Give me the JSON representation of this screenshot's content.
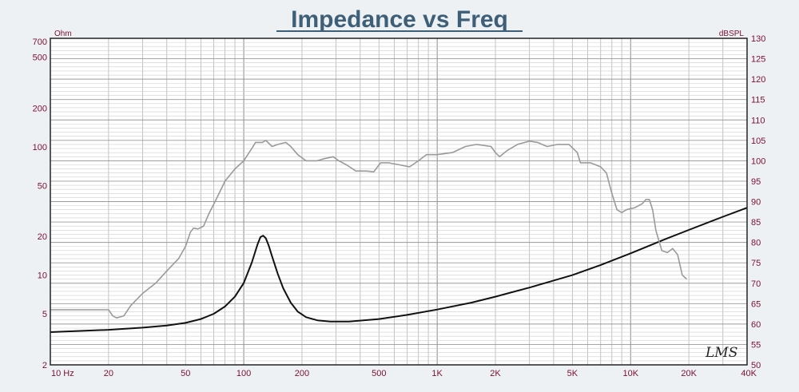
{
  "chart_data": {
    "type": "line",
    "title": "Impedance vs Freq",
    "x_scale": "log",
    "xlim": [
      10,
      40000
    ],
    "x_ticks": [
      {
        "value": 10,
        "label": "10  Hz"
      },
      {
        "value": 20,
        "label": "20"
      },
      {
        "value": 50,
        "label": "50"
      },
      {
        "value": 100,
        "label": "100"
      },
      {
        "value": 200,
        "label": "200"
      },
      {
        "value": 500,
        "label": "500"
      },
      {
        "value": 1000,
        "label": "1K"
      },
      {
        "value": 2000,
        "label": "2K"
      },
      {
        "value": 5000,
        "label": "5K"
      },
      {
        "value": 10000,
        "label": "10K"
      },
      {
        "value": 20000,
        "label": "20K"
      },
      {
        "value": 40000,
        "label": "40K"
      }
    ],
    "y_left": {
      "unit": "Ohm",
      "scale": "log",
      "range": [
        2,
        700
      ],
      "ticks": [
        {
          "value": 700,
          "label": "700"
        },
        {
          "value": 500,
          "label": "500"
        },
        {
          "value": 200,
          "label": "200"
        },
        {
          "value": 100,
          "label": "100"
        },
        {
          "value": 50,
          "label": "50"
        },
        {
          "value": 20,
          "label": "20"
        },
        {
          "value": 10,
          "label": "10"
        },
        {
          "value": 5,
          "label": "5"
        },
        {
          "value": 2,
          "label": "2"
        }
      ]
    },
    "y_right": {
      "unit": "dBSPL",
      "scale": "linear",
      "range": [
        50,
        130
      ],
      "ticks": [
        130,
        125,
        120,
        115,
        110,
        105,
        100,
        95,
        90,
        85,
        80,
        75,
        70,
        65,
        60,
        55,
        50
      ]
    },
    "grid": true,
    "series": [
      {
        "axis": "left",
        "color": "#111111",
        "points": [
          [
            10,
            3.6
          ],
          [
            20,
            3.75
          ],
          [
            30,
            3.9
          ],
          [
            40,
            4.05
          ],
          [
            50,
            4.25
          ],
          [
            60,
            4.55
          ],
          [
            70,
            5.0
          ],
          [
            80,
            5.7
          ],
          [
            90,
            6.8
          ],
          [
            100,
            8.7
          ],
          [
            110,
            12.5
          ],
          [
            118,
            17.5
          ],
          [
            122,
            19.8
          ],
          [
            126,
            20.3
          ],
          [
            130,
            19.4
          ],
          [
            135,
            16.8
          ],
          [
            140,
            14.0
          ],
          [
            150,
            10.2
          ],
          [
            160,
            7.9
          ],
          [
            175,
            6.1
          ],
          [
            190,
            5.2
          ],
          [
            210,
            4.7
          ],
          [
            240,
            4.45
          ],
          [
            280,
            4.35
          ],
          [
            350,
            4.35
          ],
          [
            500,
            4.55
          ],
          [
            700,
            4.9
          ],
          [
            1000,
            5.4
          ],
          [
            1500,
            6.1
          ],
          [
            2000,
            6.8
          ],
          [
            3000,
            8.0
          ],
          [
            5000,
            10.0
          ],
          [
            7000,
            12.0
          ],
          [
            10000,
            14.8
          ],
          [
            15000,
            19.0
          ],
          [
            20000,
            22.5
          ],
          [
            30000,
            28.5
          ],
          [
            40000,
            33.5
          ]
        ]
      },
      {
        "axis": "right",
        "color": "#9a9a9a",
        "points": [
          [
            10,
            63.5
          ],
          [
            20,
            63.5
          ],
          [
            21,
            62
          ],
          [
            22,
            61.5
          ],
          [
            24,
            62
          ],
          [
            26,
            64.5
          ],
          [
            30,
            67.5
          ],
          [
            35,
            70
          ],
          [
            40,
            73
          ],
          [
            46,
            76
          ],
          [
            50,
            79
          ],
          [
            53,
            82.5
          ],
          [
            55,
            83.5
          ],
          [
            58,
            83.3
          ],
          [
            62,
            84
          ],
          [
            66,
            87
          ],
          [
            72,
            90.5
          ],
          [
            80,
            95
          ],
          [
            90,
            98
          ],
          [
            100,
            100
          ],
          [
            110,
            103
          ],
          [
            115,
            104.5
          ],
          [
            125,
            104.5
          ],
          [
            130,
            105
          ],
          [
            140,
            103.5
          ],
          [
            150,
            104
          ],
          [
            165,
            104.5
          ],
          [
            175,
            103.5
          ],
          [
            190,
            101.5
          ],
          [
            210,
            100
          ],
          [
            240,
            100
          ],
          [
            260,
            100.5
          ],
          [
            290,
            101
          ],
          [
            310,
            100
          ],
          [
            340,
            99
          ],
          [
            380,
            97.5
          ],
          [
            430,
            97.5
          ],
          [
            470,
            97.3
          ],
          [
            510,
            99.5
          ],
          [
            560,
            99.5
          ],
          [
            640,
            99
          ],
          [
            720,
            98.5
          ],
          [
            800,
            100
          ],
          [
            880,
            101.5
          ],
          [
            1000,
            101.5
          ],
          [
            1200,
            102
          ],
          [
            1400,
            103.5
          ],
          [
            1600,
            104
          ],
          [
            1900,
            103.5
          ],
          [
            2000,
            102
          ],
          [
            2100,
            101
          ],
          [
            2300,
            102.5
          ],
          [
            2600,
            104
          ],
          [
            3000,
            104.8
          ],
          [
            3300,
            104.5
          ],
          [
            3700,
            103.5
          ],
          [
            4200,
            104
          ],
          [
            4800,
            104
          ],
          [
            5300,
            102
          ],
          [
            5500,
            99.5
          ],
          [
            6200,
            99.5
          ],
          [
            7000,
            98.5
          ],
          [
            7500,
            97
          ],
          [
            8000,
            92
          ],
          [
            8500,
            88
          ],
          [
            9000,
            87.3
          ],
          [
            9500,
            88
          ],
          [
            10500,
            88.5
          ],
          [
            11500,
            89.5
          ],
          [
            12000,
            90.5
          ],
          [
            12500,
            90.5
          ],
          [
            13000,
            88
          ],
          [
            13500,
            83
          ],
          [
            14500,
            78
          ],
          [
            15500,
            77.5
          ],
          [
            16500,
            78.5
          ],
          [
            17500,
            77
          ],
          [
            18500,
            72
          ],
          [
            19500,
            71
          ]
        ]
      }
    ],
    "watermark": "LMS"
  }
}
